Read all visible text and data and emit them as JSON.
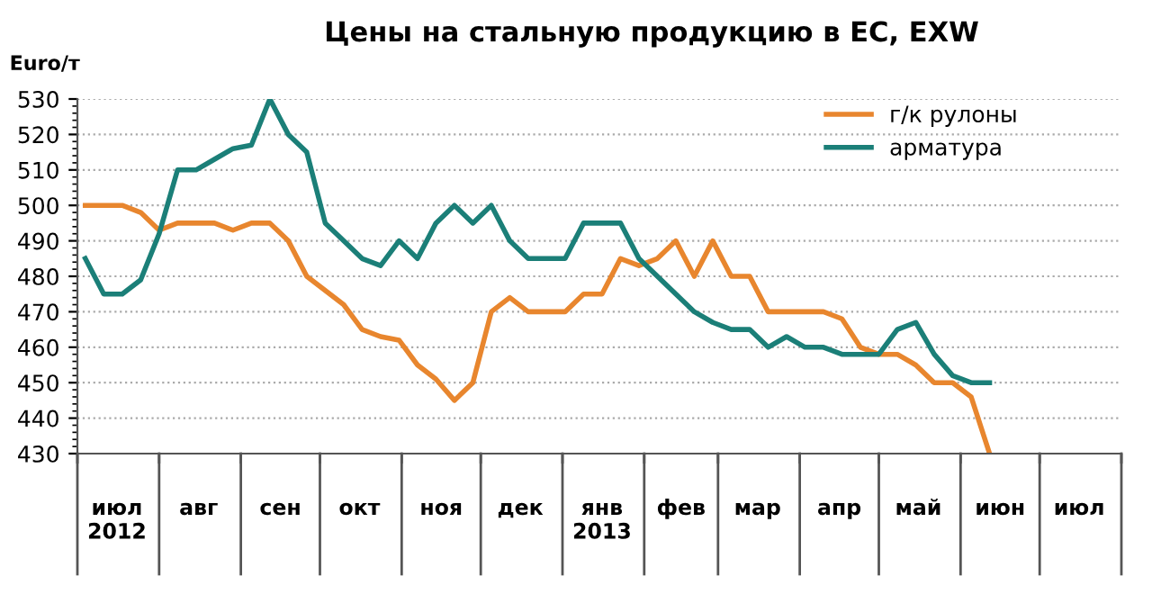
{
  "chart_data": {
    "type": "line",
    "title": "Цены на стальную продукцию в ЕС, EXW",
    "ylabel": "Euro/т",
    "x": [
      "2012-07-04",
      "2012-07-11",
      "2012-07-18",
      "2012-07-25",
      "2012-08-01",
      "2012-08-08",
      "2012-08-15",
      "2012-08-22",
      "2012-08-29",
      "2012-09-05",
      "2012-09-12",
      "2012-09-19",
      "2012-09-26",
      "2012-10-03",
      "2012-10-10",
      "2012-10-17",
      "2012-10-24",
      "2012-10-31",
      "2012-11-07",
      "2012-11-14",
      "2012-11-21",
      "2012-11-28",
      "2012-12-05",
      "2012-12-12",
      "2012-12-19",
      "2012-12-26",
      "2013-01-02",
      "2013-01-09",
      "2013-01-16",
      "2013-01-23",
      "2013-01-30",
      "2013-02-06",
      "2013-02-13",
      "2013-02-20",
      "2013-02-27",
      "2013-03-06",
      "2013-03-13",
      "2013-03-20",
      "2013-03-27",
      "2013-04-03",
      "2013-04-10",
      "2013-04-17",
      "2013-04-24",
      "2013-05-01",
      "2013-05-08",
      "2013-05-15",
      "2013-05-22",
      "2013-05-29",
      "2013-06-05",
      "2013-06-12"
    ],
    "series": [
      {
        "name": "г/к рулоны",
        "color": "#e8862e",
        "values": [
          500,
          500,
          500,
          498,
          493,
          495,
          495,
          495,
          493,
          495,
          495,
          490,
          480,
          476,
          472,
          465,
          463,
          462,
          455,
          451,
          445,
          450,
          470,
          474,
          470,
          470,
          470,
          475,
          475,
          485,
          483,
          485,
          490,
          480,
          490,
          480,
          480,
          470,
          470,
          470,
          470,
          468,
          460,
          458,
          458,
          455,
          450,
          450,
          446,
          430
        ]
      },
      {
        "name": "арматура",
        "color": "#1b7f78",
        "values": [
          485,
          475,
          475,
          479,
          492,
          510,
          510,
          513,
          516,
          517,
          530,
          520,
          515,
          495,
          490,
          485,
          483,
          490,
          485,
          495,
          500,
          495,
          500,
          490,
          485,
          485,
          485,
          495,
          495,
          495,
          485,
          480,
          475,
          470,
          467,
          465,
          465,
          460,
          463,
          460,
          460,
          458,
          458,
          458,
          465,
          467,
          458,
          452,
          450,
          450
        ]
      }
    ],
    "xlim": [
      "2012-07-01",
      "2013-08-01"
    ],
    "xticks": [
      {
        "value": "2012-07-01",
        "label": null
      },
      {
        "value": "2012-07-16",
        "label": "июл\n2012"
      },
      {
        "value": "2012-08-01",
        "label": null
      },
      {
        "value": "2012-08-16",
        "label": "авг"
      },
      {
        "value": "2012-09-01",
        "label": null
      },
      {
        "value": "2012-09-16",
        "label": "сен"
      },
      {
        "value": "2012-10-01",
        "label": null
      },
      {
        "value": "2012-10-16",
        "label": "окт"
      },
      {
        "value": "2012-11-01",
        "label": null
      },
      {
        "value": "2012-11-16",
        "label": "ноя"
      },
      {
        "value": "2012-12-01",
        "label": null
      },
      {
        "value": "2012-12-16",
        "label": "дек"
      },
      {
        "value": "2013-01-01",
        "label": null
      },
      {
        "value": "2013-01-16",
        "label": "янв\n2013"
      },
      {
        "value": "2013-02-01",
        "label": null
      },
      {
        "value": "2013-02-15",
        "label": "фев"
      },
      {
        "value": "2013-03-01",
        "label": null
      },
      {
        "value": "2013-03-16",
        "label": "мар"
      },
      {
        "value": "2013-04-01",
        "label": null
      },
      {
        "value": "2013-04-16",
        "label": "апр"
      },
      {
        "value": "2013-05-01",
        "label": null
      },
      {
        "value": "2013-05-16",
        "label": "май"
      },
      {
        "value": "2013-06-01",
        "label": null
      },
      {
        "value": "2013-06-16",
        "label": "июн"
      },
      {
        "value": "2013-07-01",
        "label": null
      },
      {
        "value": "2013-07-16",
        "label": "июл"
      },
      {
        "value": "2013-08-01",
        "label": null
      }
    ],
    "ylim": [
      430,
      530
    ],
    "yticks": [
      430,
      440,
      450,
      460,
      470,
      480,
      490,
      500,
      510,
      520,
      530
    ],
    "grid": "y",
    "legend": "top right",
    "marker": "none",
    "line_style": "solid"
  }
}
